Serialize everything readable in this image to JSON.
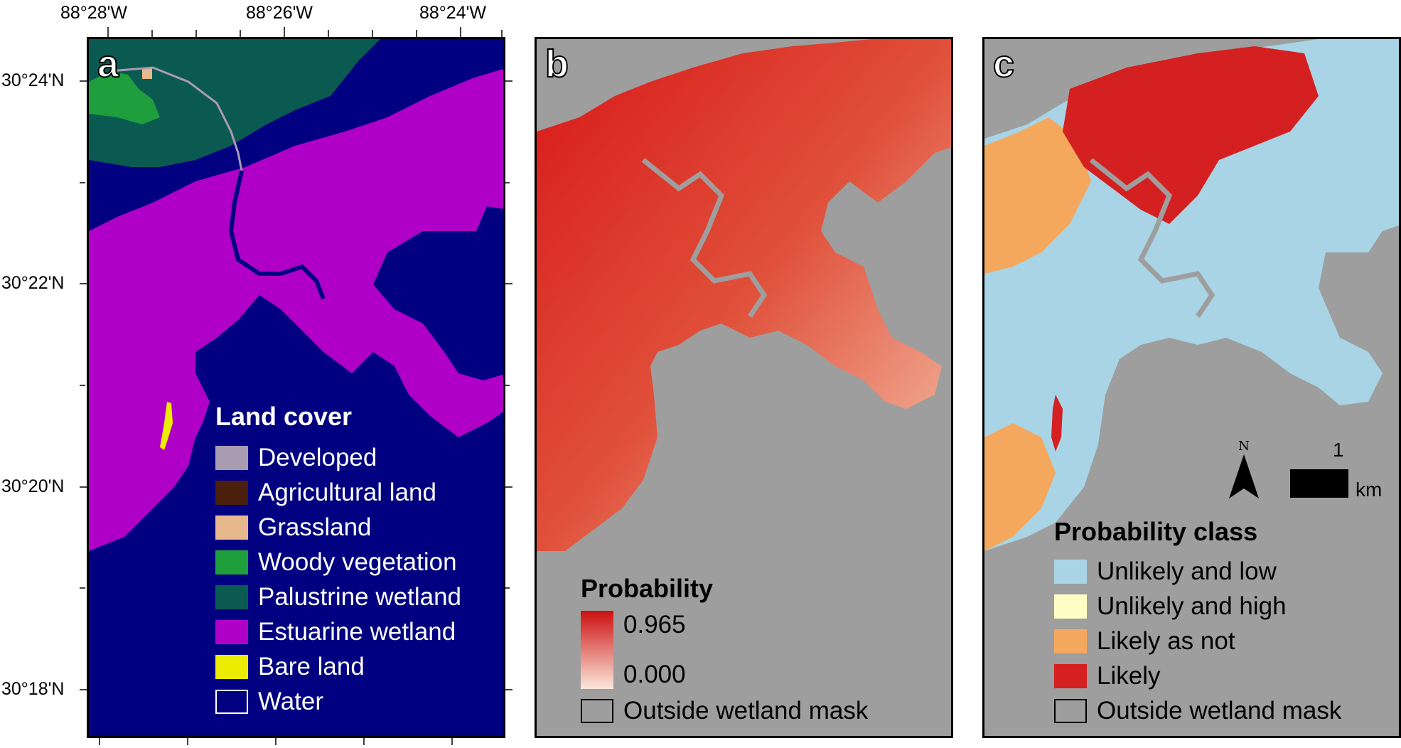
{
  "axes": {
    "longitude_labels": [
      "88°28'W",
      "88°26'W",
      "88°24'W"
    ],
    "latitude_labels": [
      "30°24'N",
      "30°22'N",
      "30°20'N",
      "30°18'N"
    ]
  },
  "panels": {
    "a": {
      "label": "a",
      "legend": {
        "title": "Land cover",
        "items": [
          {
            "label": "Developed",
            "color": "#a99bb0"
          },
          {
            "label": "Agricultural land",
            "color": "#4a1f0c"
          },
          {
            "label": "Grassland",
            "color": "#e6b88c"
          },
          {
            "label": "Woody vegetation",
            "color": "#1e9e3c"
          },
          {
            "label": "Palustrine wetland",
            "color": "#0b5a52"
          },
          {
            "label": "Estuarine wetland",
            "color": "#b000c8"
          },
          {
            "label": "Bare land",
            "color": "#ecec00"
          },
          {
            "label": "Water",
            "color": "#000080"
          }
        ]
      }
    },
    "b": {
      "label": "b",
      "legend": {
        "title": "Probability",
        "max_label": "0.965",
        "min_label": "0.000",
        "gradient": [
          "#cc1010",
          "#fbe8dc"
        ],
        "outside_label": "Outside wetland mask",
        "outside_color": "#9e9e9e"
      }
    },
    "c": {
      "label": "c",
      "north_label": "N",
      "scale_value": "1",
      "scale_unit": "km",
      "legend": {
        "title": "Probability class",
        "items": [
          {
            "label": "Unlikely and low",
            "color": "#a8d4e6"
          },
          {
            "label": "Unlikely and high",
            "color": "#fffcc4"
          },
          {
            "label": "Likely as not",
            "color": "#f4a85e"
          },
          {
            "label": "Likely",
            "color": "#d42020"
          },
          {
            "label": "Outside wetland mask",
            "color": "#9e9e9e"
          }
        ]
      }
    }
  },
  "colors": {
    "panel_background": "#9e9e9e",
    "water": "#000080",
    "estuarine": "#b000c8",
    "palustrine": "#0b5a52"
  }
}
